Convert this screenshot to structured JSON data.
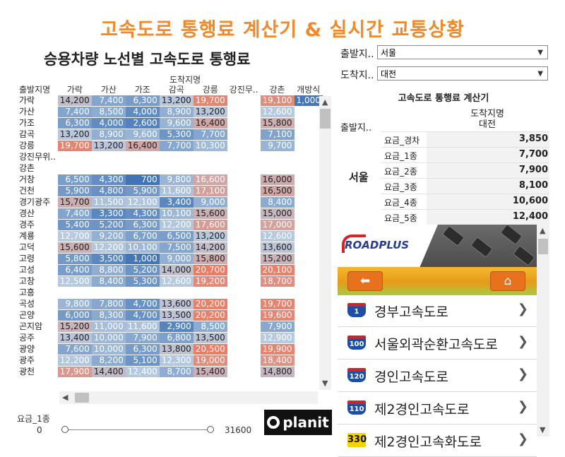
{
  "header": {
    "title": "고속도로 통행료 계산기 &  실시간 교통상황",
    "subtitle": "승용차량 노선별 고속도로 통행료"
  },
  "matrix": {
    "dest_header": "도착지명",
    "origin_header": "출발지명",
    "columns": [
      "가락",
      "가산",
      "가조",
      "감곡",
      "강릉",
      "강진무..",
      "강촌",
      "개방식"
    ],
    "rows": [
      {
        "name": "가락",
        "values": [
          "14,200",
          "7,400",
          "6,300",
          "13,200",
          "19,700",
          "",
          "19,100",
          "1,000"
        ]
      },
      {
        "name": "가산",
        "values": [
          "7,400",
          "8,500",
          "4,000",
          "8,900",
          "13,200",
          "",
          "12,600",
          ""
        ]
      },
      {
        "name": "가조",
        "values": [
          "6,300",
          "4,000",
          "2,600",
          "9,600",
          "16,400",
          "",
          "15,800",
          ""
        ]
      },
      {
        "name": "감곡",
        "values": [
          "13,200",
          "8,900",
          "9,600",
          "5,300",
          "7,700",
          "",
          "7,100",
          ""
        ]
      },
      {
        "name": "강릉",
        "values": [
          "19,700",
          "13,200",
          "16,400",
          "7,700",
          "10,300",
          "",
          "9,700",
          ""
        ]
      },
      {
        "name": "강진무위..",
        "values": [
          "",
          "",
          "",
          "",
          "",
          "",
          "",
          ""
        ]
      },
      {
        "name": "강촌",
        "values": [
          "",
          "",
          "",
          "",
          "",
          "",
          "",
          ""
        ]
      },
      {
        "name": "거창",
        "values": [
          "6,500",
          "4,300",
          "700",
          "9,800",
          "16,600",
          "",
          "16,000",
          ""
        ]
      },
      {
        "name": "건천",
        "values": [
          "5,900",
          "4,800",
          "5,900",
          "11,600",
          "17,100",
          "",
          "16,500",
          ""
        ]
      },
      {
        "name": "경기광주",
        "values": [
          "15,700",
          "11,500",
          "12,100",
          "3,400",
          "9,000",
          "",
          "8,400",
          ""
        ]
      },
      {
        "name": "경산",
        "values": [
          "7,400",
          "3,300",
          "4,300",
          "10,100",
          "15,600",
          "",
          "15,000",
          ""
        ]
      },
      {
        "name": "경주",
        "values": [
          "5,400",
          "5,200",
          "6,300",
          "12,200",
          "17,600",
          "",
          "17,000",
          ""
        ]
      },
      {
        "name": "계룡",
        "values": [
          "12,700",
          "9,200",
          "6,700",
          "6,500",
          "13,200",
          "",
          "12,600",
          ""
        ]
      },
      {
        "name": "고덕",
        "values": [
          "15,600",
          "12,200",
          "10,100",
          "7,500",
          "14,200",
          "",
          "13,600",
          ""
        ]
      },
      {
        "name": "고령",
        "values": [
          "5,800",
          "3,500",
          "1,000",
          "9,000",
          "15,800",
          "",
          "15,200",
          ""
        ]
      },
      {
        "name": "고성",
        "values": [
          "6,400",
          "8,800",
          "5,200",
          "14,000",
          "20,700",
          "",
          "20,100",
          ""
        ]
      },
      {
        "name": "고창",
        "values": [
          "12,500",
          "8,400",
          "5,300",
          "12,600",
          "19,200",
          "",
          "18,700",
          ""
        ]
      },
      {
        "name": "고흥",
        "values": [
          "",
          "",
          "",
          "",
          "",
          "",
          "",
          ""
        ]
      },
      {
        "name": "곡성",
        "values": [
          "9,800",
          "7,800",
          "4,700",
          "13,600",
          "20,200",
          "",
          "19,700",
          ""
        ]
      },
      {
        "name": "곤양",
        "values": [
          "6,000",
          "8,300",
          "4,700",
          "13,500",
          "20,200",
          "",
          "19,600",
          ""
        ]
      },
      {
        "name": "곤지암",
        "values": [
          "15,200",
          "11,000",
          "11,600",
          "2,900",
          "8,500",
          "",
          "7,900",
          ""
        ]
      },
      {
        "name": "공주",
        "values": [
          "13,400",
          "10,000",
          "7,900",
          "6,800",
          "13,500",
          "",
          "12,900",
          ""
        ]
      },
      {
        "name": "광양",
        "values": [
          "7,600",
          "10,000",
          "6,300",
          "13,800",
          "20,500",
          "",
          "19,900",
          ""
        ]
      },
      {
        "name": "광주",
        "values": [
          "12,200",
          "8,200",
          "5,100",
          "12,300",
          "19,000",
          "",
          "18,400",
          ""
        ]
      },
      {
        "name": "광천",
        "values": [
          "17,900",
          "14,400",
          "12,400",
          "8,700",
          "15,400",
          "",
          "14,800",
          ""
        ]
      }
    ]
  },
  "slider": {
    "label": "요금_1종",
    "min": "0",
    "max": "31600",
    "low_fraction": 0,
    "high_fraction": 1
  },
  "logo": {
    "text": "planit"
  },
  "filters": {
    "origin": {
      "label": "출발지..",
      "value": "서울"
    },
    "dest": {
      "label": "도착지..",
      "value": "대전"
    }
  },
  "calculator": {
    "title": "고속도로 통행료 계산기",
    "dest_header": "도착지명",
    "dest_value": "대전",
    "origin_header": "출발지..",
    "origin_value": "서울",
    "rows": [
      {
        "label": "요금_경차",
        "value": "3,850"
      },
      {
        "label": "요금_1종",
        "value": "7,700"
      },
      {
        "label": "요금_2종",
        "value": "7,900"
      },
      {
        "label": "요금_3종",
        "value": "8,100"
      },
      {
        "label": "요금_4종",
        "value": "10,600"
      },
      {
        "label": "요금_5종",
        "value": "12,400"
      }
    ]
  },
  "web": {
    "brand": "ROADPLUS",
    "back_icon": "arrow-left-icon",
    "home_icon": "home-icon",
    "items": [
      {
        "num": "1",
        "label": "경부고속도로"
      },
      {
        "num": "100",
        "label": "서울외곽순환고속도로"
      },
      {
        "num": "120",
        "label": "경인고속도로"
      },
      {
        "num": "110",
        "label": "제2경인고속도로"
      },
      {
        "num": "330",
        "label": "제2경인고속화도로"
      }
    ]
  },
  "colors": {
    "title": "#ef8a2b",
    "scale_low": "#3a6fb5",
    "scale_mid": "#b8cbe0",
    "scale_high": "#ec7b61"
  }
}
